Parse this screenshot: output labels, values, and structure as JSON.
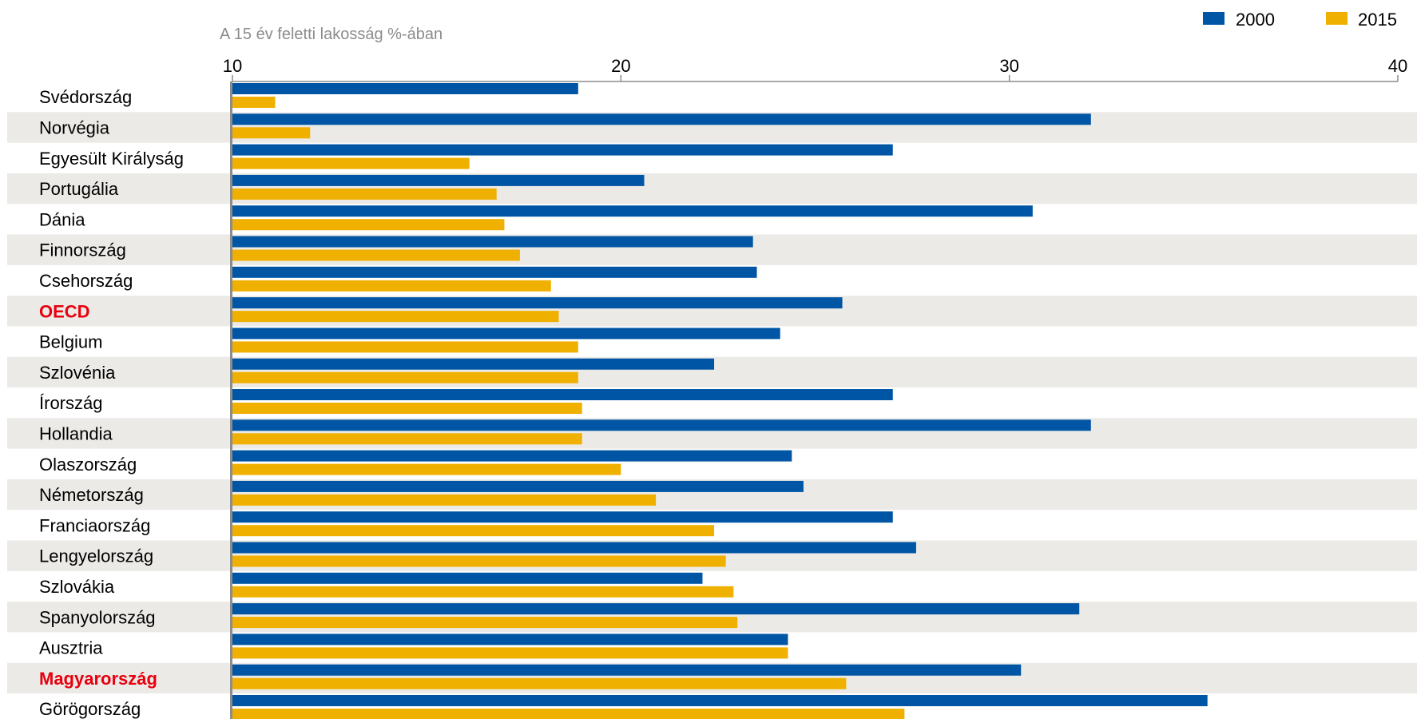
{
  "chart_data": {
    "type": "bar",
    "orientation": "horizontal",
    "title": "",
    "xlabel": "A 15 év feletti lakosság %-ában",
    "ylabel": "",
    "xlim": [
      10,
      40
    ],
    "xticks": [
      10,
      20,
      30,
      40
    ],
    "grid": false,
    "alternating_row_bands": true,
    "legend_position": "top-right",
    "categories": [
      "Svédország",
      "Norvégia",
      "Egyesült Királyság",
      "Portugália",
      "Dánia",
      "Finnország",
      "Csehország",
      "OECD",
      "Belgium",
      "Szlovénia",
      "Írország",
      "Hollandia",
      "Olaszország",
      "Németország",
      "Franciaország",
      "Lengyelország",
      "Szlovákia",
      "Spanyolország",
      "Ausztria",
      "Magyarország",
      "Görögország"
    ],
    "highlighted_categories": [
      "OECD",
      "Magyarország"
    ],
    "series": [
      {
        "name": "2000",
        "color": "#0056a4",
        "values": [
          18.9,
          32.1,
          27.0,
          20.6,
          30.6,
          23.4,
          23.5,
          25.7,
          24.1,
          22.4,
          27.0,
          32.1,
          24.4,
          24.7,
          27.0,
          27.6,
          22.1,
          31.8,
          24.3,
          30.3,
          35.1
        ]
      },
      {
        "name": "2015",
        "color": "#f0b000",
        "values": [
          11.1,
          12.0,
          16.1,
          16.8,
          17.0,
          17.4,
          18.2,
          18.4,
          18.9,
          18.9,
          19.0,
          19.0,
          20.0,
          20.9,
          22.4,
          22.7,
          22.9,
          23.0,
          24.3,
          25.8,
          27.3
        ]
      }
    ]
  },
  "colors": {
    "band": "#eceae7",
    "axis": "#8c8c8c",
    "highlight_label": "#e8000e"
  }
}
